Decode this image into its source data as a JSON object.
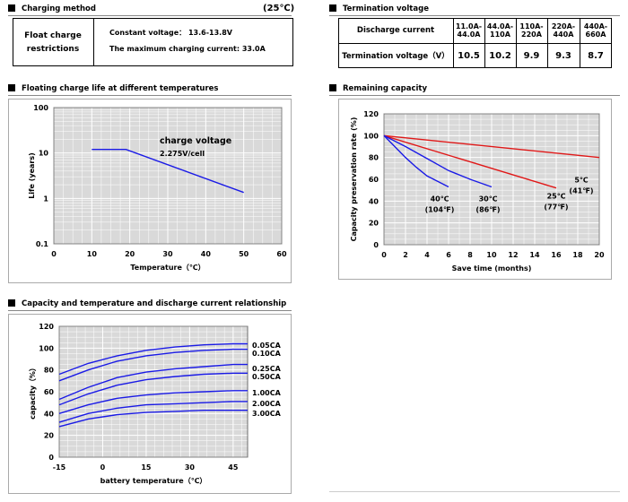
{
  "charging": {
    "title": "Charging method",
    "temp": "(25℃)",
    "float_label_1": "Float charge",
    "float_label_2": "restrictions",
    "line1": "Constant voltage： 13.6-13.8V",
    "line2": "The maximum charging current: 33.0A"
  },
  "termination": {
    "title": "Termination voltage",
    "row1_label": "Discharge current",
    "row2_label": "Termination voltage（V）",
    "columns": [
      {
        "l1": "11.0A-",
        "l2": "44.0A",
        "value": "10.5"
      },
      {
        "l1": "44.0A-",
        "l2": "110A",
        "value": "10.2"
      },
      {
        "l1": "110A-",
        "l2": "220A",
        "value": "9.9"
      },
      {
        "l1": "220A-",
        "l2": "440A",
        "value": "9.3"
      },
      {
        "l1": "440A-",
        "l2": "660A",
        "value": "8.7"
      }
    ]
  },
  "chart_data": [
    {
      "id": "float-life",
      "type": "line",
      "title": "Floating charge life at different temperatures",
      "xlabel": "Temperature（℃）",
      "ylabel": "Life (years)",
      "xlim": [
        0,
        60
      ],
      "ylim": [
        0.1,
        100
      ],
      "yscale": "log",
      "xticks": [
        0,
        10,
        20,
        30,
        40,
        50,
        60
      ],
      "yticks": [
        0.1,
        1,
        10,
        100
      ],
      "ytick_labels": [
        "0.1",
        "1",
        "10",
        "100"
      ],
      "grid": true,
      "annotations": [
        "charge voltage",
        "2.275V/cell"
      ],
      "series": [
        {
          "color": "#1a1ae6",
          "x": [
            10,
            19,
            50
          ],
          "y": [
            12,
            12,
            1.35
          ]
        }
      ]
    },
    {
      "id": "remaining",
      "type": "line",
      "title": "Remaining capacity",
      "xlabel": "Save time (months)",
      "ylabel": "Capacity preservation rate (%)",
      "xlim": [
        0,
        20
      ],
      "ylim": [
        0,
        120
      ],
      "xticks": [
        0,
        2,
        4,
        6,
        8,
        10,
        12,
        14,
        16,
        18,
        20
      ],
      "yticks": [
        0,
        20,
        40,
        60,
        80,
        100,
        120
      ],
      "grid": true,
      "series": [
        {
          "label_1": "5℃",
          "label_2": "(41℉)",
          "color": "#e01818",
          "x": [
            0,
            20
          ],
          "y": [
            100,
            80
          ]
        },
        {
          "label_1": "25℃",
          "label_2": "(77℉)",
          "color": "#e01818",
          "x": [
            0,
            16
          ],
          "y": [
            100,
            52
          ]
        },
        {
          "label_1": "30℃",
          "label_2": "(86℉)",
          "color": "#1a1ae6",
          "x": [
            0,
            2,
            4,
            6,
            8,
            10
          ],
          "y": [
            100,
            90,
            79,
            68,
            60,
            53
          ]
        },
        {
          "label_1": "40℃",
          "label_2": "(104℉)",
          "color": "#1a1ae6",
          "x": [
            0,
            1,
            2,
            3,
            4,
            5,
            6
          ],
          "y": [
            100,
            90,
            80,
            71,
            63,
            58,
            53
          ]
        }
      ]
    },
    {
      "id": "capacity-temp",
      "type": "line",
      "title": "Capacity and temperature and discharge current relationship",
      "xlabel": "battery temperature（℃）",
      "ylabel": "capacity（%）",
      "xlim": [
        -15,
        50
      ],
      "ylim": [
        0,
        120
      ],
      "xticks": [
        -15,
        0,
        15,
        30,
        45
      ],
      "yticks": [
        0,
        20,
        40,
        60,
        80,
        100,
        120
      ],
      "grid": true,
      "series": [
        {
          "name": "0.05CA",
          "color": "#1a1ae6",
          "x": [
            -15,
            -5,
            5,
            15,
            25,
            35,
            45,
            50
          ],
          "y": [
            76,
            86,
            93,
            98,
            101,
            103,
            104,
            104
          ]
        },
        {
          "name": "0.10CA",
          "color": "#1a1ae6",
          "x": [
            -15,
            -5,
            5,
            15,
            25,
            35,
            45,
            50
          ],
          "y": [
            70,
            80,
            88,
            93,
            96,
            98,
            99,
            99
          ]
        },
        {
          "name": "0.25CA",
          "color": "#1a1ae6",
          "x": [
            -15,
            -5,
            5,
            15,
            25,
            35,
            45,
            50
          ],
          "y": [
            53,
            64,
            73,
            78,
            81,
            83,
            85,
            85
          ]
        },
        {
          "name": "0.50CA",
          "color": "#1a1ae6",
          "x": [
            -15,
            -5,
            5,
            15,
            25,
            35,
            45,
            50
          ],
          "y": [
            48,
            58,
            66,
            71,
            74,
            76,
            77,
            77
          ]
        },
        {
          "name": "1.00CA",
          "color": "#1a1ae6",
          "x": [
            -15,
            -5,
            5,
            15,
            25,
            35,
            45,
            50
          ],
          "y": [
            40,
            48,
            54,
            57,
            59,
            60,
            61,
            61
          ]
        },
        {
          "name": "2.00CA",
          "color": "#1a1ae6",
          "x": [
            -15,
            -5,
            5,
            15,
            25,
            35,
            45,
            50
          ],
          "y": [
            32,
            40,
            45,
            48,
            49,
            50,
            51,
            51
          ]
        },
        {
          "name": "3.00CA",
          "color": "#1a1ae6",
          "x": [
            -15,
            -5,
            5,
            15,
            25,
            35,
            45,
            50
          ],
          "y": [
            28,
            35,
            39,
            41,
            42,
            43,
            43,
            43
          ]
        }
      ]
    }
  ]
}
